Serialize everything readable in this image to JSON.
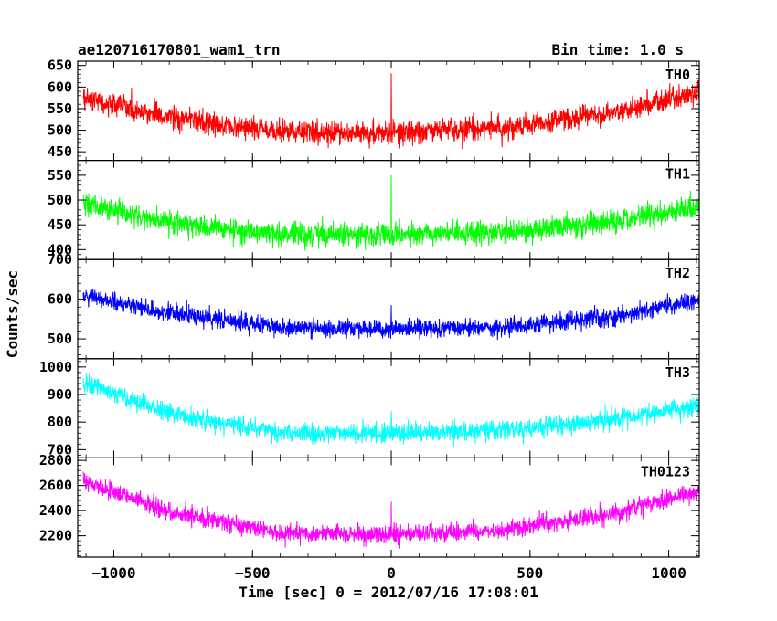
{
  "chart_data": {
    "type": "line",
    "title_left": "ae120716170801_wam1_trn",
    "title_right": "Bin time: 1.0 s",
    "xlabel": "Time [sec] 0 = 2012/07/16 17:08:01",
    "ylabel": "Counts/sec",
    "xlim": [
      -1130,
      1110
    ],
    "x_ticks": [
      -1000,
      -500,
      0,
      500,
      1000
    ],
    "x_tick_labels": [
      "−1000",
      "−500",
      "0",
      "500",
      "1000"
    ],
    "data_x_range": [
      -1110,
      1110
    ],
    "bin_seconds": 1.0,
    "grid": false,
    "panels": [
      {
        "name": "TH0",
        "color": "#ff0000",
        "ylim": [
          430,
          660
        ],
        "y_ticks": [
          450,
          500,
          550,
          600,
          650
        ],
        "y_tick_labels": [
          "450",
          "500",
          "550",
          "600",
          "650"
        ],
        "trend": {
          "x": [
            -1110,
            -800,
            -400,
            0,
            400,
            800,
            1110
          ],
          "y": [
            575,
            530,
            495,
            495,
            505,
            540,
            590
          ]
        },
        "noise_amplitude": 40,
        "spike": {
          "x": 0,
          "y": 632
        }
      },
      {
        "name": "TH1",
        "color": "#00ff00",
        "ylim": [
          380,
          580
        ],
        "y_ticks": [
          400,
          450,
          500,
          550
        ],
        "y_tick_labels": [
          "400",
          "450",
          "500",
          "550"
        ],
        "trend": {
          "x": [
            -1110,
            -800,
            -400,
            0,
            400,
            800,
            1110
          ],
          "y": [
            490,
            455,
            430,
            430,
            435,
            455,
            485
          ]
        },
        "noise_amplitude": 35,
        "spike": {
          "x": 0,
          "y": 550
        }
      },
      {
        "name": "TH2",
        "color": "#0000ff",
        "ylim": [
          450,
          700
        ],
        "y_ticks": [
          500,
          600,
          700
        ],
        "y_tick_labels": [
          "500",
          "600",
          "700"
        ],
        "trend": {
          "x": [
            -1110,
            -800,
            -400,
            0,
            400,
            800,
            1110
          ],
          "y": [
            610,
            565,
            530,
            525,
            530,
            555,
            600
          ]
        },
        "noise_amplitude": 35,
        "spike": {
          "x": 0,
          "y": 585
        }
      },
      {
        "name": "TH3",
        "color": "#00ffff",
        "ylim": [
          670,
          1030
        ],
        "y_ticks": [
          700,
          800,
          900,
          1000
        ],
        "y_tick_labels": [
          "700",
          "800",
          "900",
          "1000"
        ],
        "trend": {
          "x": [
            -1110,
            -800,
            -400,
            0,
            400,
            800,
            1110
          ],
          "y": [
            945,
            830,
            760,
            760,
            770,
            810,
            860
          ]
        },
        "noise_amplitude": 55,
        "spike": {
          "x": 0,
          "y": 840
        }
      },
      {
        "name": "TH0123",
        "color": "#ff00ff",
        "ylim": [
          2030,
          2820
        ],
        "y_ticks": [
          2200,
          2400,
          2600,
          2800
        ],
        "y_tick_labels": [
          "2200",
          "2400",
          "2600",
          "2800"
        ],
        "trend": {
          "x": [
            -1110,
            -800,
            -400,
            0,
            400,
            800,
            1110
          ],
          "y": [
            2640,
            2390,
            2220,
            2210,
            2240,
            2380,
            2560
          ]
        },
        "noise_amplitude": 110,
        "spike": {
          "x": 0,
          "y": 2470
        }
      }
    ]
  }
}
